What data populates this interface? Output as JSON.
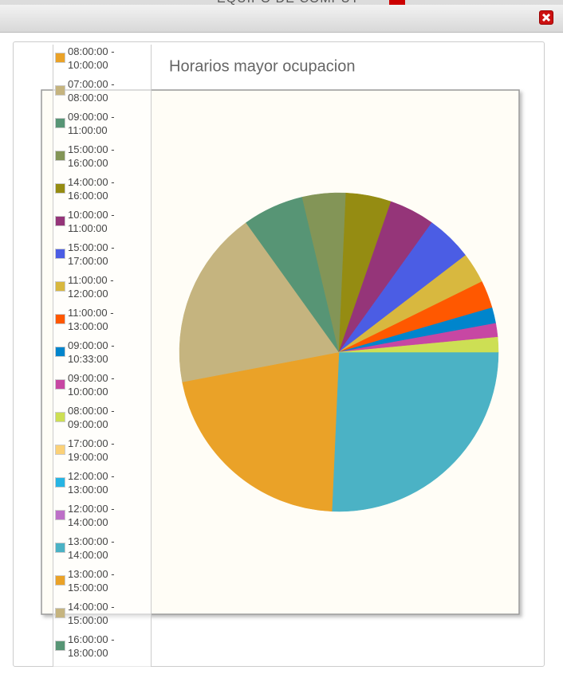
{
  "background_text": "EQUIPO DE COMPUT",
  "chart_data": {
    "type": "pie",
    "title": "Horarios mayor ocupacion",
    "categories": [
      null,
      "08:00:00 - 10:00:00",
      "07:00:00 - 08:00:00",
      "09:00:00 - 11:00:00",
      "15:00:00 - 16:00:00",
      "14:00:00 - 16:00:00",
      "10:00:00 - 11:00:00",
      "15:00:00 - 17:00:00",
      "11:00:00 - 12:00:00",
      "11:00:00 - 13:00:00",
      "09:00:00 - 10:33:00",
      "09:00:00 - 10:00:00",
      "08:00:00 - 09:00:00",
      "17:00:00 - 19:00:00",
      "12:00:00 - 13:00:00",
      "12:00:00 - 14:00:00",
      "13:00:00 - 14:00:00",
      "13:00:00 - 15:00:00",
      "14:00:00 - 15:00:00",
      "16:00:00 - 18:00:00"
    ],
    "values": [
      25.7,
      21.3,
      18.1,
      6.2,
      4.4,
      4.6,
      4.6,
      4.7,
      3.1,
      2.8,
      1.6,
      1.4,
      1.5,
      0,
      0,
      0,
      0,
      0,
      0,
      0
    ],
    "colors": [
      "#4bb2c5",
      "#eaa228",
      "#c5b47f",
      "#579575",
      "#839557",
      "#958c12",
      "#953579",
      "#4b5de4",
      "#d8b83f",
      "#ff5800",
      "#0085cc",
      "#c747a3",
      "#cddf54",
      "#fbd178",
      "#26b4e3",
      "#bd70c7",
      "#4bb2c5",
      "#eaa228",
      "#c5b47f",
      "#579575"
    ]
  }
}
